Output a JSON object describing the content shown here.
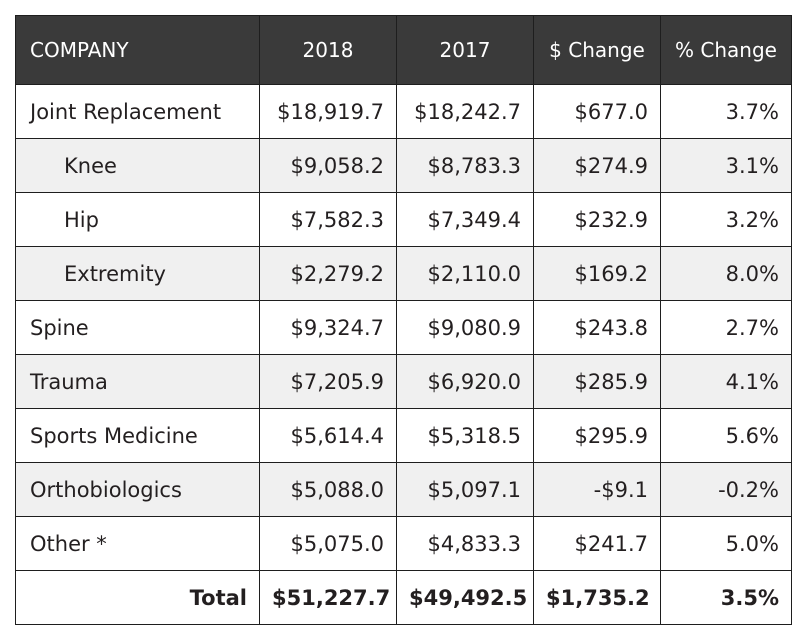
{
  "chart_data": {
    "type": "table",
    "columns": [
      "COMPANY",
      "2018",
      "2017",
      "$ Change",
      "% Change"
    ],
    "rows": [
      {
        "label": "Joint Replacement",
        "indent": false,
        "shaded": false,
        "values": [
          "$18,919.7",
          "$18,242.7",
          "$677.0",
          "3.7%"
        ]
      },
      {
        "label": "Knee",
        "indent": true,
        "shaded": true,
        "values": [
          "$9,058.2",
          "$8,783.3",
          "$274.9",
          "3.1%"
        ]
      },
      {
        "label": "Hip",
        "indent": true,
        "shaded": false,
        "values": [
          "$7,582.3",
          "$7,349.4",
          "$232.9",
          "3.2%"
        ]
      },
      {
        "label": "Extremity",
        "indent": true,
        "shaded": true,
        "values": [
          "$2,279.2",
          "$2,110.0",
          "$169.2",
          "8.0%"
        ]
      },
      {
        "label": "Spine",
        "indent": false,
        "shaded": false,
        "values": [
          "$9,324.7",
          "$9,080.9",
          "$243.8",
          "2.7%"
        ]
      },
      {
        "label": "Trauma",
        "indent": false,
        "shaded": true,
        "values": [
          "$7,205.9",
          "$6,920.0",
          "$285.9",
          "4.1%"
        ]
      },
      {
        "label": "Sports Medicine",
        "indent": false,
        "shaded": false,
        "values": [
          "$5,614.4",
          "$5,318.5",
          "$295.9",
          "5.6%"
        ]
      },
      {
        "label": "Orthobiologics",
        "indent": false,
        "shaded": true,
        "values": [
          "$5,088.0",
          "$5,097.1",
          "-$9.1",
          "-0.2%"
        ]
      },
      {
        "label": "Other *",
        "indent": false,
        "shaded": false,
        "values": [
          "$5,075.0",
          "$4,833.3",
          "$241.7",
          "5.0%"
        ]
      }
    ],
    "total": {
      "label": "Total",
      "values": [
        "$51,227.7",
        "$49,492.5",
        "$1,735.2",
        "3.5%"
      ]
    }
  },
  "colors": {
    "header_bg": "#3a3a3a",
    "header_text": "#ffffff",
    "row_shade": "#f0f0f0",
    "border": "#1e1e1e"
  }
}
